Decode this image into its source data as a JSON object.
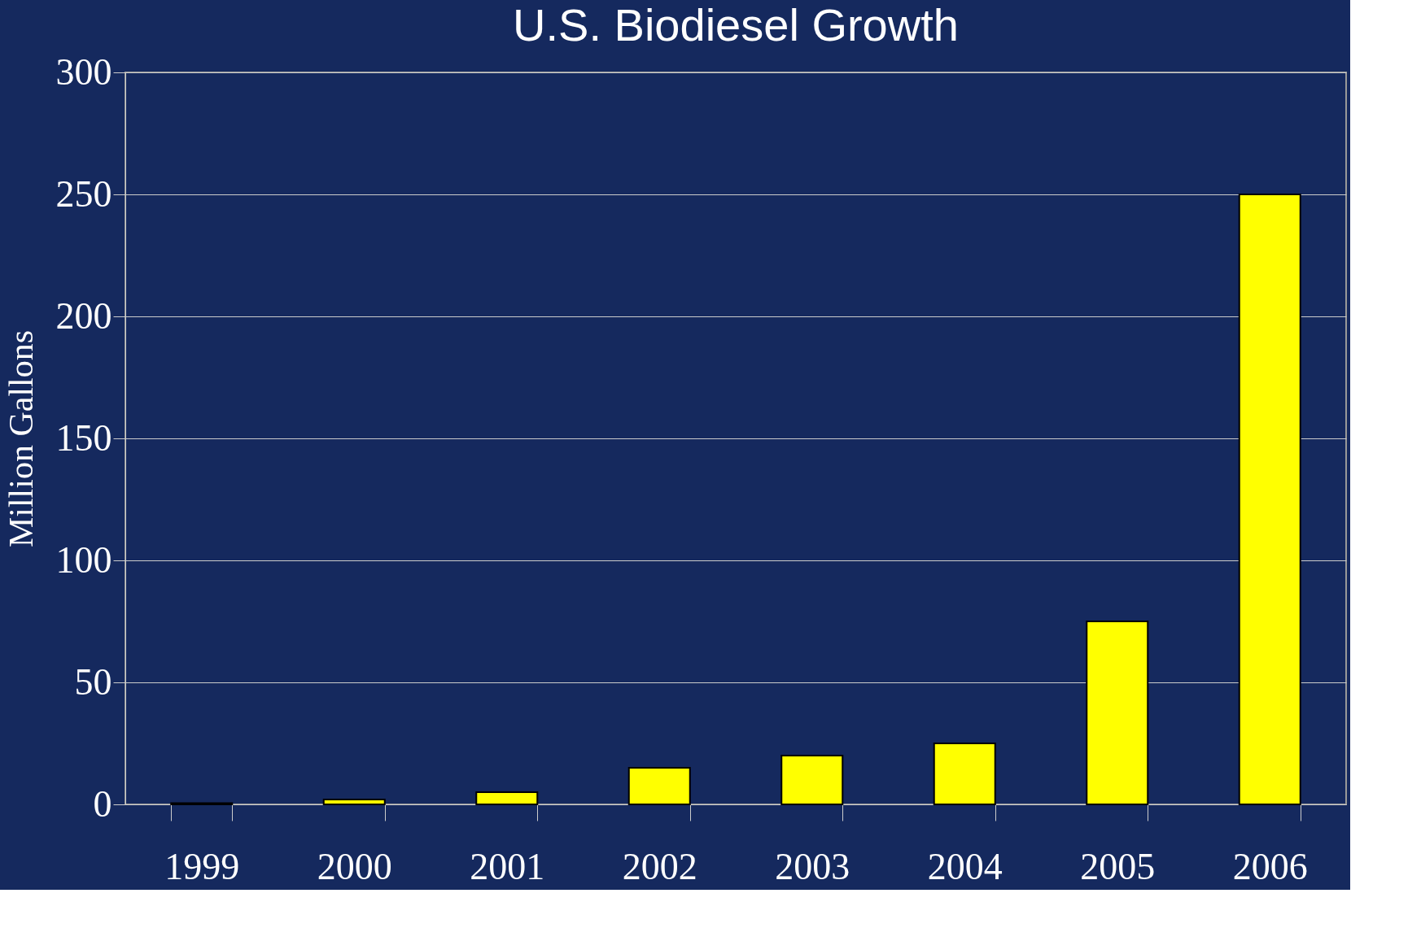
{
  "chart_data": {
    "type": "bar",
    "title": "U.S. Biodiesel Growth",
    "ylabel": "Million Gallons",
    "categories": [
      "1999",
      "2000",
      "2001",
      "2002",
      "2003",
      "2004",
      "2005",
      "2006"
    ],
    "values": [
      0.5,
      2,
      5,
      15,
      20,
      25,
      75,
      250
    ],
    "color": "#ffff00",
    "ylim": [
      0,
      300
    ],
    "yticks": [
      0,
      50,
      100,
      150,
      200,
      250,
      300
    ],
    "grid": "y"
  }
}
